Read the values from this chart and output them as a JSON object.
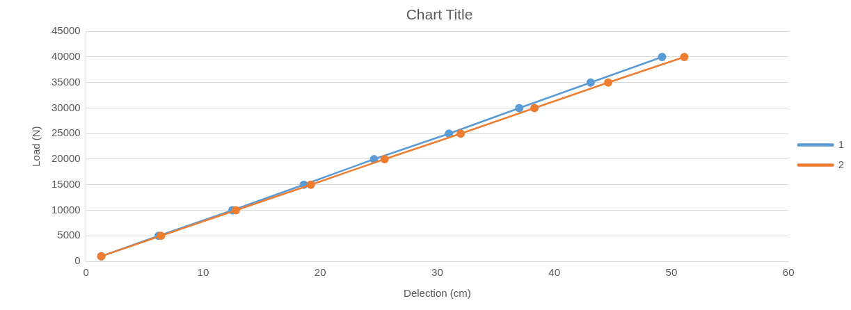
{
  "chart_data": {
    "type": "line",
    "title": "Chart Title",
    "xlabel": "Delection (cm)",
    "ylabel": "Load (N)",
    "xlim": [
      0,
      60
    ],
    "xticks": [
      0,
      10,
      20,
      30,
      40,
      50,
      60
    ],
    "ylim": [
      0,
      45000
    ],
    "yticks": [
      0,
      5000,
      10000,
      15000,
      20000,
      25000,
      30000,
      35000,
      40000,
      45000
    ],
    "grid": "y",
    "legend": "right",
    "marker": "circle",
    "line_style": "solid",
    "series": [
      {
        "name": "1",
        "color": "#5b9bd5",
        "x": [
          1.3,
          6.2,
          12.5,
          18.6,
          24.6,
          31.0,
          37.0,
          43.1,
          49.2
        ],
        "values": [
          1000,
          5000,
          10000,
          15000,
          20000,
          25000,
          30000,
          35000,
          40000
        ]
      },
      {
        "name": "2",
        "color": "#ed7d31",
        "x": [
          1.3,
          6.4,
          12.8,
          19.2,
          25.5,
          32.0,
          38.3,
          44.6,
          51.1
        ],
        "values": [
          1000,
          5000,
          10000,
          15000,
          20000,
          25000,
          30000,
          35000,
          40000
        ]
      }
    ]
  }
}
